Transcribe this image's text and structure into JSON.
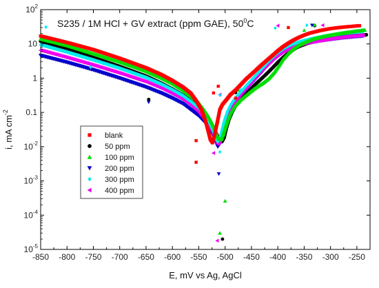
{
  "chart_data": {
    "type": "scatter",
    "title": "S235 / 1M HCl + GV extract (ppm GAE), 50",
    "title_sup": "0",
    "title_suffix": "C",
    "xlabel": "E, mV vs Ag, AgCl",
    "ylabel": "i, mA cm",
    "ylabel_sup": "-2",
    "xlim": [
      -850,
      -225
    ],
    "ylim_log10": [
      -5,
      2
    ],
    "y_scale": "log",
    "x_ticks": [
      -850,
      -800,
      -750,
      -700,
      -650,
      -600,
      -550,
      -500,
      -450,
      -400,
      -350,
      -300,
      -250
    ],
    "x_tick_labels": [
      "-850",
      "-800",
      "-750",
      "-700",
      "-650",
      "-600",
      "-550",
      "-500",
      "-450",
      "-400",
      "-350",
      "-300",
      "-250"
    ],
    "y_tick_exponents": [
      -5,
      -4,
      -3,
      -2,
      -1,
      0,
      1,
      2
    ],
    "y_tick_labels": [
      {
        "base": "10",
        "exp": "-5"
      },
      {
        "base": "10",
        "exp": "-4"
      },
      {
        "base": "10",
        "exp": "-3"
      },
      {
        "base": "10",
        "exp": "-2"
      },
      {
        "base": "0.1",
        "exp": ""
      },
      {
        "base": "1",
        "exp": ""
      },
      {
        "base": "10",
        "exp": ""
      },
      {
        "base": "10",
        "exp": "2"
      }
    ],
    "grid": false,
    "legend_position": "left-middle",
    "series": [
      {
        "name": "blank",
        "color": "#ff0000",
        "marker": "square",
        "points": [
          [
            -850,
            17
          ],
          [
            -800,
            11
          ],
          [
            -750,
            6.8
          ],
          [
            -700,
            3.8
          ],
          [
            -650,
            2.0
          ],
          [
            -620,
            1.25
          ],
          [
            -600,
            0.85
          ],
          [
            -580,
            0.55
          ],
          [
            -565,
            0.36
          ],
          [
            -555,
            0.22
          ],
          [
            -545,
            0.12
          ],
          [
            -537,
            0.055
          ],
          [
            -532,
            0.028
          ],
          [
            -528,
            0.016
          ],
          [
            -524,
            0.013
          ],
          [
            -520,
            0.022
          ],
          [
            -515,
            0.05
          ],
          [
            -510,
            0.12
          ],
          [
            -505,
            0.17
          ],
          [
            -498,
            0.23
          ],
          [
            -490,
            0.33
          ],
          [
            -480,
            0.45
          ],
          [
            -470,
            0.65
          ],
          [
            -460,
            0.95
          ],
          [
            -450,
            1.3
          ],
          [
            -440,
            1.8
          ],
          [
            -430,
            2.5
          ],
          [
            -420,
            3.4
          ],
          [
            -410,
            4.6
          ],
          [
            -400,
            6.3
          ],
          [
            -390,
            8.3
          ],
          [
            -380,
            10.5
          ],
          [
            -370,
            13
          ],
          [
            -360,
            15.5
          ],
          [
            -350,
            18
          ],
          [
            -340,
            20.5
          ],
          [
            -320,
            24.5
          ],
          [
            -300,
            28
          ],
          [
            -280,
            30.5
          ],
          [
            -260,
            32.5
          ],
          [
            -245,
            34
          ]
        ],
        "outliers": [
          [
            -555,
            0.015
          ],
          [
            -555,
            0.0035
          ],
          [
            -522,
            0.37
          ],
          [
            -513,
            0.58
          ],
          [
            -480,
            0.26
          ],
          [
            -380,
            30
          ]
        ]
      },
      {
        "name": "50 ppm",
        "color": "#000000",
        "marker": "circle",
        "points": [
          [
            -850,
            12
          ],
          [
            -800,
            7.2
          ],
          [
            -750,
            4.0
          ],
          [
            -700,
            2.2
          ],
          [
            -650,
            1.15
          ],
          [
            -620,
            0.7
          ],
          [
            -600,
            0.48
          ],
          [
            -580,
            0.32
          ],
          [
            -565,
            0.22
          ],
          [
            -550,
            0.14
          ],
          [
            -540,
            0.09
          ],
          [
            -530,
            0.055
          ],
          [
            -522,
            0.035
          ],
          [
            -516,
            0.023
          ],
          [
            -511,
            0.016
          ],
          [
            -506,
            0.014
          ],
          [
            -502,
            0.018
          ],
          [
            -498,
            0.033
          ],
          [
            -493,
            0.06
          ],
          [
            -487,
            0.1
          ],
          [
            -480,
            0.16
          ],
          [
            -470,
            0.24
          ],
          [
            -460,
            0.35
          ],
          [
            -450,
            0.5
          ],
          [
            -440,
            0.72
          ],
          [
            -430,
            1.0
          ],
          [
            -420,
            1.4
          ],
          [
            -410,
            2.0
          ],
          [
            -400,
            2.9
          ],
          [
            -390,
            4.0
          ],
          [
            -380,
            5.4
          ],
          [
            -370,
            6.9
          ],
          [
            -360,
            8.4
          ],
          [
            -345,
            10.2
          ],
          [
            -330,
            12
          ],
          [
            -310,
            13.8
          ],
          [
            -290,
            15.3
          ],
          [
            -270,
            16.6
          ],
          [
            -250,
            17.6
          ],
          [
            -232,
            18.5
          ]
        ],
        "outliers": [
          [
            -645,
            0.24
          ],
          [
            -505,
            2e-05
          ],
          [
            -480,
            0.38
          ],
          [
            -330,
            34
          ]
        ]
      },
      {
        "name": "100 ppm",
        "color": "#00dd00",
        "marker": "triangle-up",
        "points": [
          [
            -850,
            14
          ],
          [
            -800,
            9
          ],
          [
            -750,
            5.2
          ],
          [
            -700,
            3.0
          ],
          [
            -650,
            1.6
          ],
          [
            -620,
            1.0
          ],
          [
            -600,
            0.7
          ],
          [
            -580,
            0.45
          ],
          [
            -565,
            0.3
          ],
          [
            -550,
            0.19
          ],
          [
            -540,
            0.12
          ],
          [
            -530,
            0.07
          ],
          [
            -522,
            0.04
          ],
          [
            -517,
            0.025
          ],
          [
            -512,
            0.017
          ],
          [
            -508,
            0.016
          ],
          [
            -504,
            0.022
          ],
          [
            -500,
            0.035
          ],
          [
            -495,
            0.06
          ],
          [
            -489,
            0.1
          ],
          [
            -482,
            0.15
          ],
          [
            -472,
            0.22
          ],
          [
            -462,
            0.3
          ],
          [
            -452,
            0.4
          ],
          [
            -440,
            0.55
          ],
          [
            -428,
            0.72
          ],
          [
            -418,
            0.95
          ],
          [
            -408,
            1.4
          ],
          [
            -398,
            2.3
          ],
          [
            -390,
            3.6
          ],
          [
            -380,
            5.3
          ],
          [
            -370,
            7.2
          ],
          [
            -360,
            9.2
          ],
          [
            -345,
            11.8
          ],
          [
            -330,
            14.2
          ],
          [
            -310,
            16.8
          ],
          [
            -290,
            19.2
          ],
          [
            -270,
            21.6
          ],
          [
            -250,
            23.8
          ],
          [
            -235,
            25.5
          ]
        ],
        "outliers": [
          [
            -510,
            3e-05
          ],
          [
            -500,
            0.00026
          ],
          [
            -475,
            0.45
          ],
          [
            -330,
            36
          ],
          [
            -350,
            25
          ]
        ]
      },
      {
        "name": "200 ppm",
        "color": "#0000cc",
        "marker": "triangle-down",
        "points": [
          [
            -850,
            4.6
          ],
          [
            -800,
            2.9
          ],
          [
            -750,
            1.75
          ],
          [
            -700,
            1.0
          ],
          [
            -650,
            0.55
          ],
          [
            -620,
            0.36
          ],
          [
            -600,
            0.26
          ],
          [
            -580,
            0.18
          ],
          [
            -565,
            0.12
          ],
          [
            -550,
            0.08
          ],
          [
            -540,
            0.055
          ],
          [
            -530,
            0.034
          ],
          [
            -523,
            0.022
          ],
          [
            -518,
            0.014
          ],
          [
            -514,
            0.01
          ],
          [
            -510,
            0.012
          ],
          [
            -506,
            0.02
          ],
          [
            -501,
            0.038
          ],
          [
            -495,
            0.07
          ],
          [
            -488,
            0.12
          ],
          [
            -480,
            0.19
          ],
          [
            -470,
            0.3
          ],
          [
            -460,
            0.46
          ],
          [
            -450,
            0.7
          ],
          [
            -440,
            1.05
          ],
          [
            -430,
            1.55
          ],
          [
            -420,
            2.3
          ],
          [
            -410,
            3.3
          ],
          [
            -400,
            4.5
          ],
          [
            -390,
            5.8
          ],
          [
            -378,
            7.2
          ],
          [
            -365,
            8.6
          ],
          [
            -350,
            10
          ],
          [
            -335,
            11.3
          ],
          [
            -315,
            12.7
          ],
          [
            -295,
            14
          ],
          [
            -275,
            15.2
          ],
          [
            -255,
            16.2
          ],
          [
            -238,
            17
          ]
        ],
        "outliers": [
          [
            -645,
            0.2
          ],
          [
            -512,
            0.0016
          ],
          [
            -468,
            0.36
          ],
          [
            -335,
            35
          ]
        ]
      },
      {
        "name": "300 ppm",
        "color": "#00eeee",
        "marker": "diamond",
        "points": [
          [
            -850,
            9.5
          ],
          [
            -800,
            5.8
          ],
          [
            -750,
            3.4
          ],
          [
            -700,
            1.95
          ],
          [
            -650,
            1.05
          ],
          [
            -620,
            0.66
          ],
          [
            -600,
            0.46
          ],
          [
            -580,
            0.31
          ],
          [
            -565,
            0.21
          ],
          [
            -550,
            0.135
          ],
          [
            -540,
            0.085
          ],
          [
            -530,
            0.05
          ],
          [
            -523,
            0.03
          ],
          [
            -518,
            0.019
          ],
          [
            -514,
            0.014
          ],
          [
            -510,
            0.017
          ],
          [
            -506,
            0.03
          ],
          [
            -501,
            0.06
          ],
          [
            -495,
            0.11
          ],
          [
            -488,
            0.18
          ],
          [
            -480,
            0.27
          ],
          [
            -470,
            0.4
          ],
          [
            -460,
            0.6
          ],
          [
            -450,
            0.88
          ],
          [
            -440,
            1.3
          ],
          [
            -430,
            1.9
          ],
          [
            -420,
            2.8
          ],
          [
            -410,
            4.0
          ],
          [
            -400,
            5.5
          ],
          [
            -390,
            7.2
          ],
          [
            -378,
            9.0
          ],
          [
            -365,
            10.8
          ],
          [
            -350,
            12.5
          ],
          [
            -335,
            14.2
          ],
          [
            -315,
            16.3
          ],
          [
            -295,
            18.3
          ],
          [
            -275,
            20.3
          ],
          [
            -255,
            22
          ],
          [
            -238,
            23.5
          ]
        ],
        "outliers": [
          [
            -840,
            31
          ],
          [
            -755,
            2.1
          ],
          [
            -510,
            0.007
          ],
          [
            -470,
            0.45
          ],
          [
            -510,
            0.32
          ],
          [
            -405,
            29
          ],
          [
            -345,
            35
          ]
        ]
      },
      {
        "name": "400 ppm",
        "color": "#ee00ee",
        "marker": "triangle-left",
        "points": [
          [
            -850,
            6.5
          ],
          [
            -800,
            4.0
          ],
          [
            -750,
            2.4
          ],
          [
            -700,
            1.4
          ],
          [
            -650,
            0.78
          ],
          [
            -620,
            0.5
          ],
          [
            -600,
            0.35
          ],
          [
            -580,
            0.24
          ],
          [
            -565,
            0.165
          ],
          [
            -550,
            0.105
          ],
          [
            -540,
            0.068
          ],
          [
            -530,
            0.042
          ],
          [
            -523,
            0.026
          ],
          [
            -518,
            0.017
          ],
          [
            -514,
            0.012
          ],
          [
            -510,
            0.014
          ],
          [
            -506,
            0.025
          ],
          [
            -501,
            0.048
          ],
          [
            -495,
            0.09
          ],
          [
            -488,
            0.15
          ],
          [
            -480,
            0.23
          ],
          [
            -470,
            0.35
          ],
          [
            -460,
            0.53
          ],
          [
            -450,
            0.8
          ],
          [
            -440,
            1.2
          ],
          [
            -430,
            1.75
          ],
          [
            -420,
            2.5
          ],
          [
            -410,
            3.5
          ],
          [
            -400,
            4.7
          ],
          [
            -390,
            6.0
          ],
          [
            -378,
            7.4
          ],
          [
            -365,
            8.8
          ],
          [
            -350,
            10.2
          ],
          [
            -335,
            11.5
          ],
          [
            -315,
            13
          ],
          [
            -295,
            14.4
          ],
          [
            -275,
            15.8
          ],
          [
            -255,
            17
          ],
          [
            -238,
            18
          ]
        ],
        "outliers": [
          [
            -840,
            14.5
          ],
          [
            -515,
            1.8e-05
          ],
          [
            -522,
            0.0065
          ],
          [
            -510,
            0.33
          ],
          [
            -400,
            34
          ],
          [
            -315,
            35
          ]
        ]
      }
    ]
  }
}
